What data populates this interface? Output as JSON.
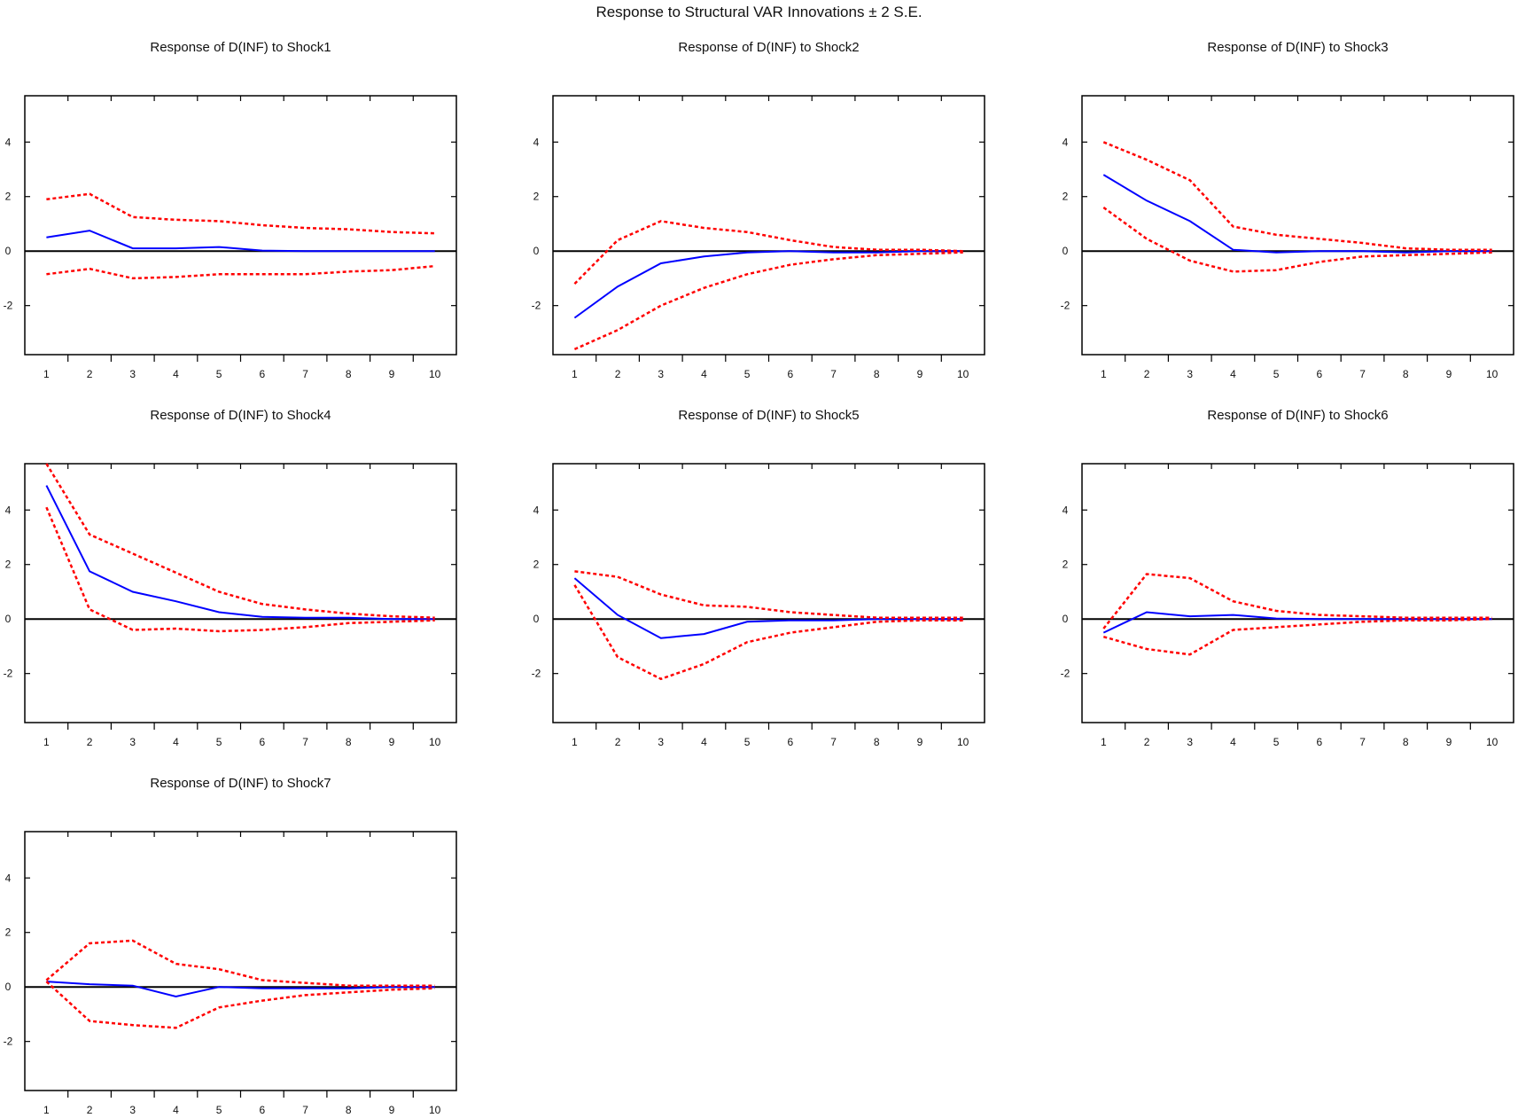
{
  "figure": {
    "title": "Response to Structural VAR Innovations ± 2 S.E."
  },
  "colors": {
    "response": "#0000ff",
    "band": "#ff0000",
    "zero": "#000000"
  },
  "chart_data": [
    {
      "type": "line",
      "title": "Response of D(INF) to Shock1",
      "x": [
        1,
        2,
        3,
        4,
        5,
        6,
        7,
        8,
        9,
        10
      ],
      "ylim": [
        -3.8,
        5.7
      ],
      "yticks": [
        -2,
        0,
        2,
        4
      ],
      "series": [
        {
          "role": "response",
          "values": [
            0.5,
            0.75,
            0.1,
            0.1,
            0.15,
            0.02,
            0.0,
            0.0,
            0.0,
            0.0
          ]
        },
        {
          "role": "upper",
          "values": [
            1.9,
            2.1,
            1.25,
            1.15,
            1.1,
            0.95,
            0.85,
            0.8,
            0.7,
            0.65
          ]
        },
        {
          "role": "lower",
          "values": [
            -0.85,
            -0.65,
            -1.0,
            -0.95,
            -0.85,
            -0.85,
            -0.85,
            -0.75,
            -0.7,
            -0.55
          ]
        }
      ]
    },
    {
      "type": "line",
      "title": "Response of D(INF) to Shock2",
      "x": [
        1,
        2,
        3,
        4,
        5,
        6,
        7,
        8,
        9,
        10
      ],
      "ylim": [
        -3.8,
        5.7
      ],
      "yticks": [
        -2,
        0,
        2,
        4
      ],
      "series": [
        {
          "role": "response",
          "values": [
            -2.45,
            -1.3,
            -0.45,
            -0.2,
            -0.05,
            0.0,
            -0.05,
            -0.05,
            0.0,
            0.0
          ]
        },
        {
          "role": "upper",
          "values": [
            -1.2,
            0.4,
            1.1,
            0.85,
            0.7,
            0.4,
            0.15,
            0.05,
            0.05,
            0.0
          ]
        },
        {
          "role": "lower",
          "values": [
            -3.6,
            -2.9,
            -2.0,
            -1.35,
            -0.85,
            -0.5,
            -0.3,
            -0.15,
            -0.1,
            -0.05
          ]
        }
      ]
    },
    {
      "type": "line",
      "title": "Response of D(INF) to Shock3",
      "x": [
        1,
        2,
        3,
        4,
        5,
        6,
        7,
        8,
        9,
        10
      ],
      "ylim": [
        -3.8,
        5.7
      ],
      "yticks": [
        -2,
        0,
        2,
        4
      ],
      "series": [
        {
          "role": "response",
          "values": [
            2.8,
            1.85,
            1.1,
            0.05,
            -0.05,
            0.0,
            0.0,
            -0.05,
            0.0,
            0.0
          ]
        },
        {
          "role": "upper",
          "values": [
            4.0,
            3.35,
            2.6,
            0.9,
            0.6,
            0.45,
            0.3,
            0.1,
            0.05,
            0.05
          ]
        },
        {
          "role": "lower",
          "values": [
            1.6,
            0.45,
            -0.35,
            -0.75,
            -0.7,
            -0.4,
            -0.2,
            -0.15,
            -0.1,
            -0.05
          ]
        }
      ]
    },
    {
      "type": "line",
      "title": "Response of D(INF) to Shock4",
      "x": [
        1,
        2,
        3,
        4,
        5,
        6,
        7,
        8,
        9,
        10
      ],
      "ylim": [
        -3.8,
        5.7
      ],
      "yticks": [
        -2,
        0,
        2,
        4
      ],
      "series": [
        {
          "role": "response",
          "values": [
            4.9,
            1.75,
            1.0,
            0.65,
            0.25,
            0.08,
            0.05,
            0.05,
            0.0,
            0.0
          ]
        },
        {
          "role": "upper",
          "values": [
            5.7,
            3.1,
            2.4,
            1.7,
            1.0,
            0.55,
            0.35,
            0.2,
            0.1,
            0.05
          ]
        },
        {
          "role": "lower",
          "values": [
            4.1,
            0.35,
            -0.4,
            -0.35,
            -0.45,
            -0.4,
            -0.3,
            -0.15,
            -0.1,
            -0.05
          ]
        }
      ]
    },
    {
      "type": "line",
      "title": "Response of D(INF) to Shock5",
      "x": [
        1,
        2,
        3,
        4,
        5,
        6,
        7,
        8,
        9,
        10
      ],
      "ylim": [
        -3.8,
        5.7
      ],
      "yticks": [
        -2,
        0,
        2,
        4
      ],
      "series": [
        {
          "role": "response",
          "values": [
            1.5,
            0.15,
            -0.7,
            -0.55,
            -0.1,
            -0.05,
            -0.05,
            0.0,
            0.0,
            0.0
          ]
        },
        {
          "role": "upper",
          "values": [
            1.75,
            1.55,
            0.9,
            0.5,
            0.45,
            0.25,
            0.15,
            0.05,
            0.05,
            0.05
          ]
        },
        {
          "role": "lower",
          "values": [
            1.25,
            -1.4,
            -2.2,
            -1.65,
            -0.85,
            -0.5,
            -0.3,
            -0.1,
            -0.05,
            -0.05
          ]
        }
      ]
    },
    {
      "type": "line",
      "title": "Response of D(INF) to Shock6",
      "x": [
        1,
        2,
        3,
        4,
        5,
        6,
        7,
        8,
        9,
        10
      ],
      "ylim": [
        -3.8,
        5.7
      ],
      "yticks": [
        -2,
        0,
        2,
        4
      ],
      "series": [
        {
          "role": "response",
          "values": [
            -0.5,
            0.25,
            0.1,
            0.15,
            0.02,
            0.0,
            0.0,
            0.0,
            0.0,
            0.0
          ]
        },
        {
          "role": "upper",
          "values": [
            -0.35,
            1.65,
            1.5,
            0.65,
            0.3,
            0.15,
            0.1,
            0.05,
            0.05,
            0.05
          ]
        },
        {
          "role": "lower",
          "values": [
            -0.65,
            -1.1,
            -1.3,
            -0.4,
            -0.3,
            -0.2,
            -0.1,
            -0.05,
            -0.05,
            0.0
          ]
        }
      ]
    },
    {
      "type": "line",
      "title": "Response of D(INF) to Shock7",
      "x": [
        1,
        2,
        3,
        4,
        5,
        6,
        7,
        8,
        9,
        10
      ],
      "ylim": [
        -3.8,
        5.7
      ],
      "yticks": [
        -2,
        0,
        2,
        4
      ],
      "series": [
        {
          "role": "response",
          "values": [
            0.2,
            0.1,
            0.05,
            -0.35,
            0.0,
            -0.05,
            -0.05,
            -0.05,
            0.0,
            0.0
          ]
        },
        {
          "role": "upper",
          "values": [
            0.25,
            1.6,
            1.7,
            0.85,
            0.65,
            0.25,
            0.15,
            0.05,
            0.05,
            0.05
          ]
        },
        {
          "role": "lower",
          "values": [
            0.2,
            -1.25,
            -1.4,
            -1.5,
            -0.75,
            -0.5,
            -0.3,
            -0.2,
            -0.1,
            -0.05
          ]
        }
      ]
    }
  ]
}
